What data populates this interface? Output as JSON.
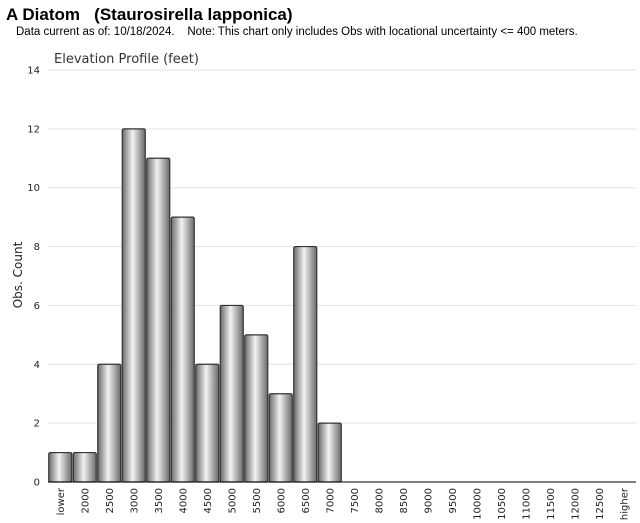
{
  "header": {
    "title": "A Diatom   (Staurosirella lapponica)",
    "subtitle": "Data current as of: 10/18/2024.    Note: This chart only includes Obs with locational uncertainty <= 400 meters."
  },
  "colors": {
    "bar_dark": "#6a6a6a",
    "bar_light": "#f2f2f2",
    "bar_stroke": "#333333",
    "grid": "#e3e3e3"
  },
  "chart_data": {
    "type": "bar",
    "title": "Elevation Profile (feet)",
    "xlabel": "",
    "ylabel": "Obs. Count",
    "ylim": [
      0,
      14
    ],
    "yticks": [
      0,
      2,
      4,
      6,
      8,
      10,
      12,
      14
    ],
    "grid": true,
    "categories": [
      "lower",
      "2000",
      "2500",
      "3000",
      "3500",
      "4000",
      "4500",
      "5000",
      "5500",
      "6000",
      "6500",
      "7000",
      "7500",
      "8000",
      "8500",
      "9000",
      "9500",
      "10000",
      "10500",
      "11000",
      "11500",
      "12000",
      "12500",
      "higher"
    ],
    "values": [
      1,
      1,
      4,
      12,
      11,
      9,
      4,
      6,
      5,
      3,
      8,
      2,
      0,
      0,
      0,
      0,
      0,
      0,
      0,
      0,
      0,
      0,
      0,
      0
    ]
  }
}
